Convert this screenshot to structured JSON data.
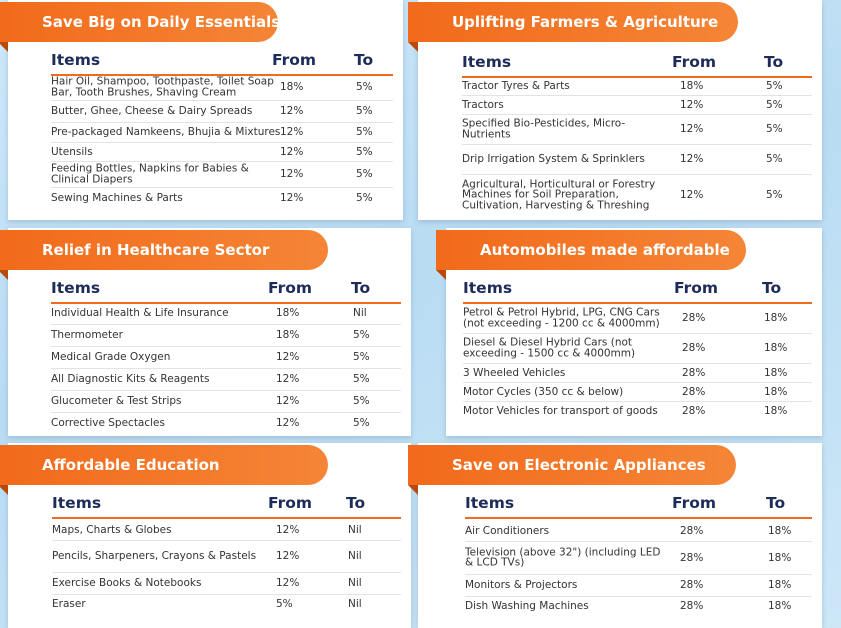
{
  "headers": {
    "items": "Items",
    "from": "From",
    "to": "To"
  },
  "sections": [
    {
      "title": "Save Big on Daily Essentials",
      "rows": [
        {
          "item": "Hair Oil, Shampoo, Toothpaste, Toilet Soap Bar, Tooth Brushes, Shaving Cream",
          "from": "18%",
          "to": "5%"
        },
        {
          "item": "Butter, Ghee, Cheese & Dairy Spreads",
          "from": "12%",
          "to": "5%"
        },
        {
          "item": "Pre-packaged Namkeens, Bhujia & Mixtures",
          "from": "12%",
          "to": "5%"
        },
        {
          "item": "Utensils",
          "from": "12%",
          "to": "5%"
        },
        {
          "item": "Feeding Bottles, Napkins for Babies & Clinical Diapers",
          "from": "12%",
          "to": "5%"
        },
        {
          "item": "Sewing Machines & Parts",
          "from": "12%",
          "to": "5%"
        }
      ]
    },
    {
      "title": "Uplifting Farmers & Agriculture",
      "rows": [
        {
          "item": "Tractor Tyres & Parts",
          "from": "18%",
          "to": "5%"
        },
        {
          "item": "Tractors",
          "from": "12%",
          "to": "5%"
        },
        {
          "item": "Specified Bio-Pesticides, Micro-Nutrients",
          "from": "12%",
          "to": "5%"
        },
        {
          "item": "Drip Irrigation System & Sprinklers",
          "from": "12%",
          "to": "5%"
        },
        {
          "item": "Agricultural, Horticultural or Forestry Machines for Soil Preparation, Cultivation, Harvesting & Threshing",
          "from": "12%",
          "to": "5%"
        }
      ]
    },
    {
      "title": "Relief in Healthcare Sector",
      "rows": [
        {
          "item": "Individual Health & Life Insurance",
          "from": "18%",
          "to": "Nil"
        },
        {
          "item": "Thermometer",
          "from": "18%",
          "to": "5%"
        },
        {
          "item": "Medical Grade Oxygen",
          "from": "12%",
          "to": "5%"
        },
        {
          "item": "All Diagnostic Kits & Reagents",
          "from": "12%",
          "to": "5%"
        },
        {
          "item": "Glucometer & Test Strips",
          "from": "12%",
          "to": "5%"
        },
        {
          "item": "Corrective Spectacles",
          "from": "12%",
          "to": "5%"
        }
      ]
    },
    {
      "title": "Automobiles made affordable",
      "rows": [
        {
          "item": "Petrol & Petrol Hybrid, LPG, CNG Cars (not exceeding - 1200 cc & 4000mm)",
          "from": "28%",
          "to": "18%"
        },
        {
          "item": "Diesel & Diesel Hybrid Cars (not exceeding - 1500 cc & 4000mm)",
          "from": "28%",
          "to": "18%"
        },
        {
          "item": "3 Wheeled Vehicles",
          "from": "28%",
          "to": "18%"
        },
        {
          "item": "Motor Cycles (350 cc & below)",
          "from": "28%",
          "to": "18%"
        },
        {
          "item": "Motor Vehicles for transport of goods",
          "from": "28%",
          "to": "18%"
        }
      ]
    },
    {
      "title": "Affordable Education",
      "rows": [
        {
          "item": "Maps, Charts & Globes",
          "from": "12%",
          "to": "Nil"
        },
        {
          "item": "Pencils, Sharpeners, Crayons & Pastels",
          "from": "12%",
          "to": "Nil"
        },
        {
          "item": "Exercise Books & Notebooks",
          "from": "12%",
          "to": "Nil"
        },
        {
          "item": "Eraser",
          "from": "5%",
          "to": "Nil"
        }
      ]
    },
    {
      "title": "Save on Electronic Appliances",
      "rows": [
        {
          "item": "Air Conditioners",
          "from": "28%",
          "to": "18%"
        },
        {
          "item": "Television (above 32\") (including LED & LCD TVs)",
          "from": "28%",
          "to": "18%"
        },
        {
          "item": "Monitors & Projectors",
          "from": "28%",
          "to": "18%"
        },
        {
          "item": "Dish Washing Machines",
          "from": "28%",
          "to": "18%"
        }
      ]
    }
  ]
}
